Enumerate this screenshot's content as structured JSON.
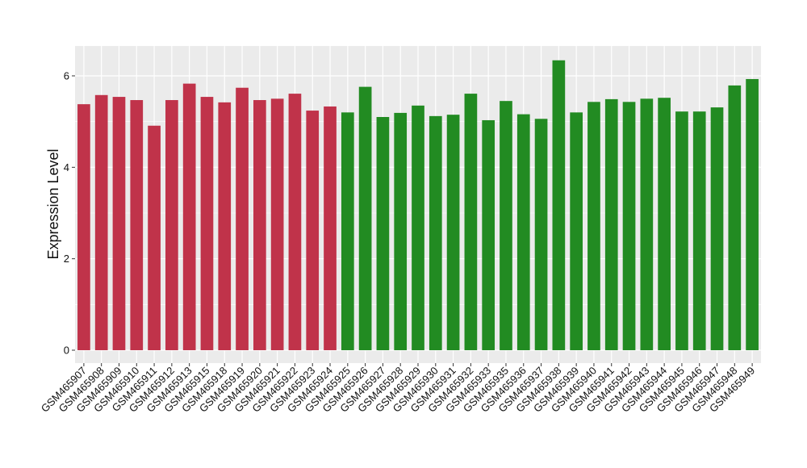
{
  "chart_data": {
    "type": "bar",
    "title": "",
    "xlabel": "",
    "ylabel": "Expression Level",
    "ylim": [
      0,
      6.6
    ],
    "yticks": [
      0,
      2,
      4,
      6
    ],
    "ytick_labels": [
      "0",
      "2",
      "4",
      "6"
    ],
    "grid": true,
    "legend": "none",
    "panel_background": "#ebebeb",
    "grid_color": "#ffffff",
    "categories": [
      "GSM465907",
      "GSM465908",
      "GSM465909",
      "GSM465910",
      "GSM465911",
      "GSM465912",
      "GSM465913",
      "GSM465915",
      "GSM465918",
      "GSM465919",
      "GSM465920",
      "GSM465921",
      "GSM465922",
      "GSM465923",
      "GSM465924",
      "GSM465925",
      "GSM465926",
      "GSM465927",
      "GSM465928",
      "GSM465929",
      "GSM465930",
      "GSM465931",
      "GSM465932",
      "GSM465933",
      "GSM465935",
      "GSM465936",
      "GSM465937",
      "GSM465938",
      "GSM465939",
      "GSM465940",
      "GSM465941",
      "GSM465942",
      "GSM465943",
      "GSM465944",
      "GSM465945",
      "GSM465946",
      "GSM465947",
      "GSM465948",
      "GSM465949"
    ],
    "values": [
      5.38,
      5.58,
      5.54,
      5.47,
      4.91,
      5.47,
      5.83,
      5.54,
      5.42,
      5.74,
      5.47,
      5.5,
      5.61,
      5.24,
      5.33,
      5.2,
      5.76,
      5.1,
      5.19,
      5.35,
      5.12,
      5.15,
      5.61,
      5.03,
      5.45,
      5.16,
      5.06,
      6.34,
      5.2,
      5.43,
      5.49,
      5.43,
      5.5,
      5.52,
      5.22,
      5.22,
      5.31,
      5.79,
      5.93
    ],
    "colors": [
      "#c0334a",
      "#c0334a",
      "#c0334a",
      "#c0334a",
      "#c0334a",
      "#c0334a",
      "#c0334a",
      "#c0334a",
      "#c0334a",
      "#c0334a",
      "#c0334a",
      "#c0334a",
      "#c0334a",
      "#c0334a",
      "#c0334a",
      "#228b22",
      "#228b22",
      "#228b22",
      "#228b22",
      "#228b22",
      "#228b22",
      "#228b22",
      "#228b22",
      "#228b22",
      "#228b22",
      "#228b22",
      "#228b22",
      "#228b22",
      "#228b22",
      "#228b22",
      "#228b22",
      "#228b22",
      "#228b22",
      "#228b22",
      "#228b22",
      "#228b22",
      "#228b22",
      "#228b22",
      "#228b22"
    ]
  }
}
